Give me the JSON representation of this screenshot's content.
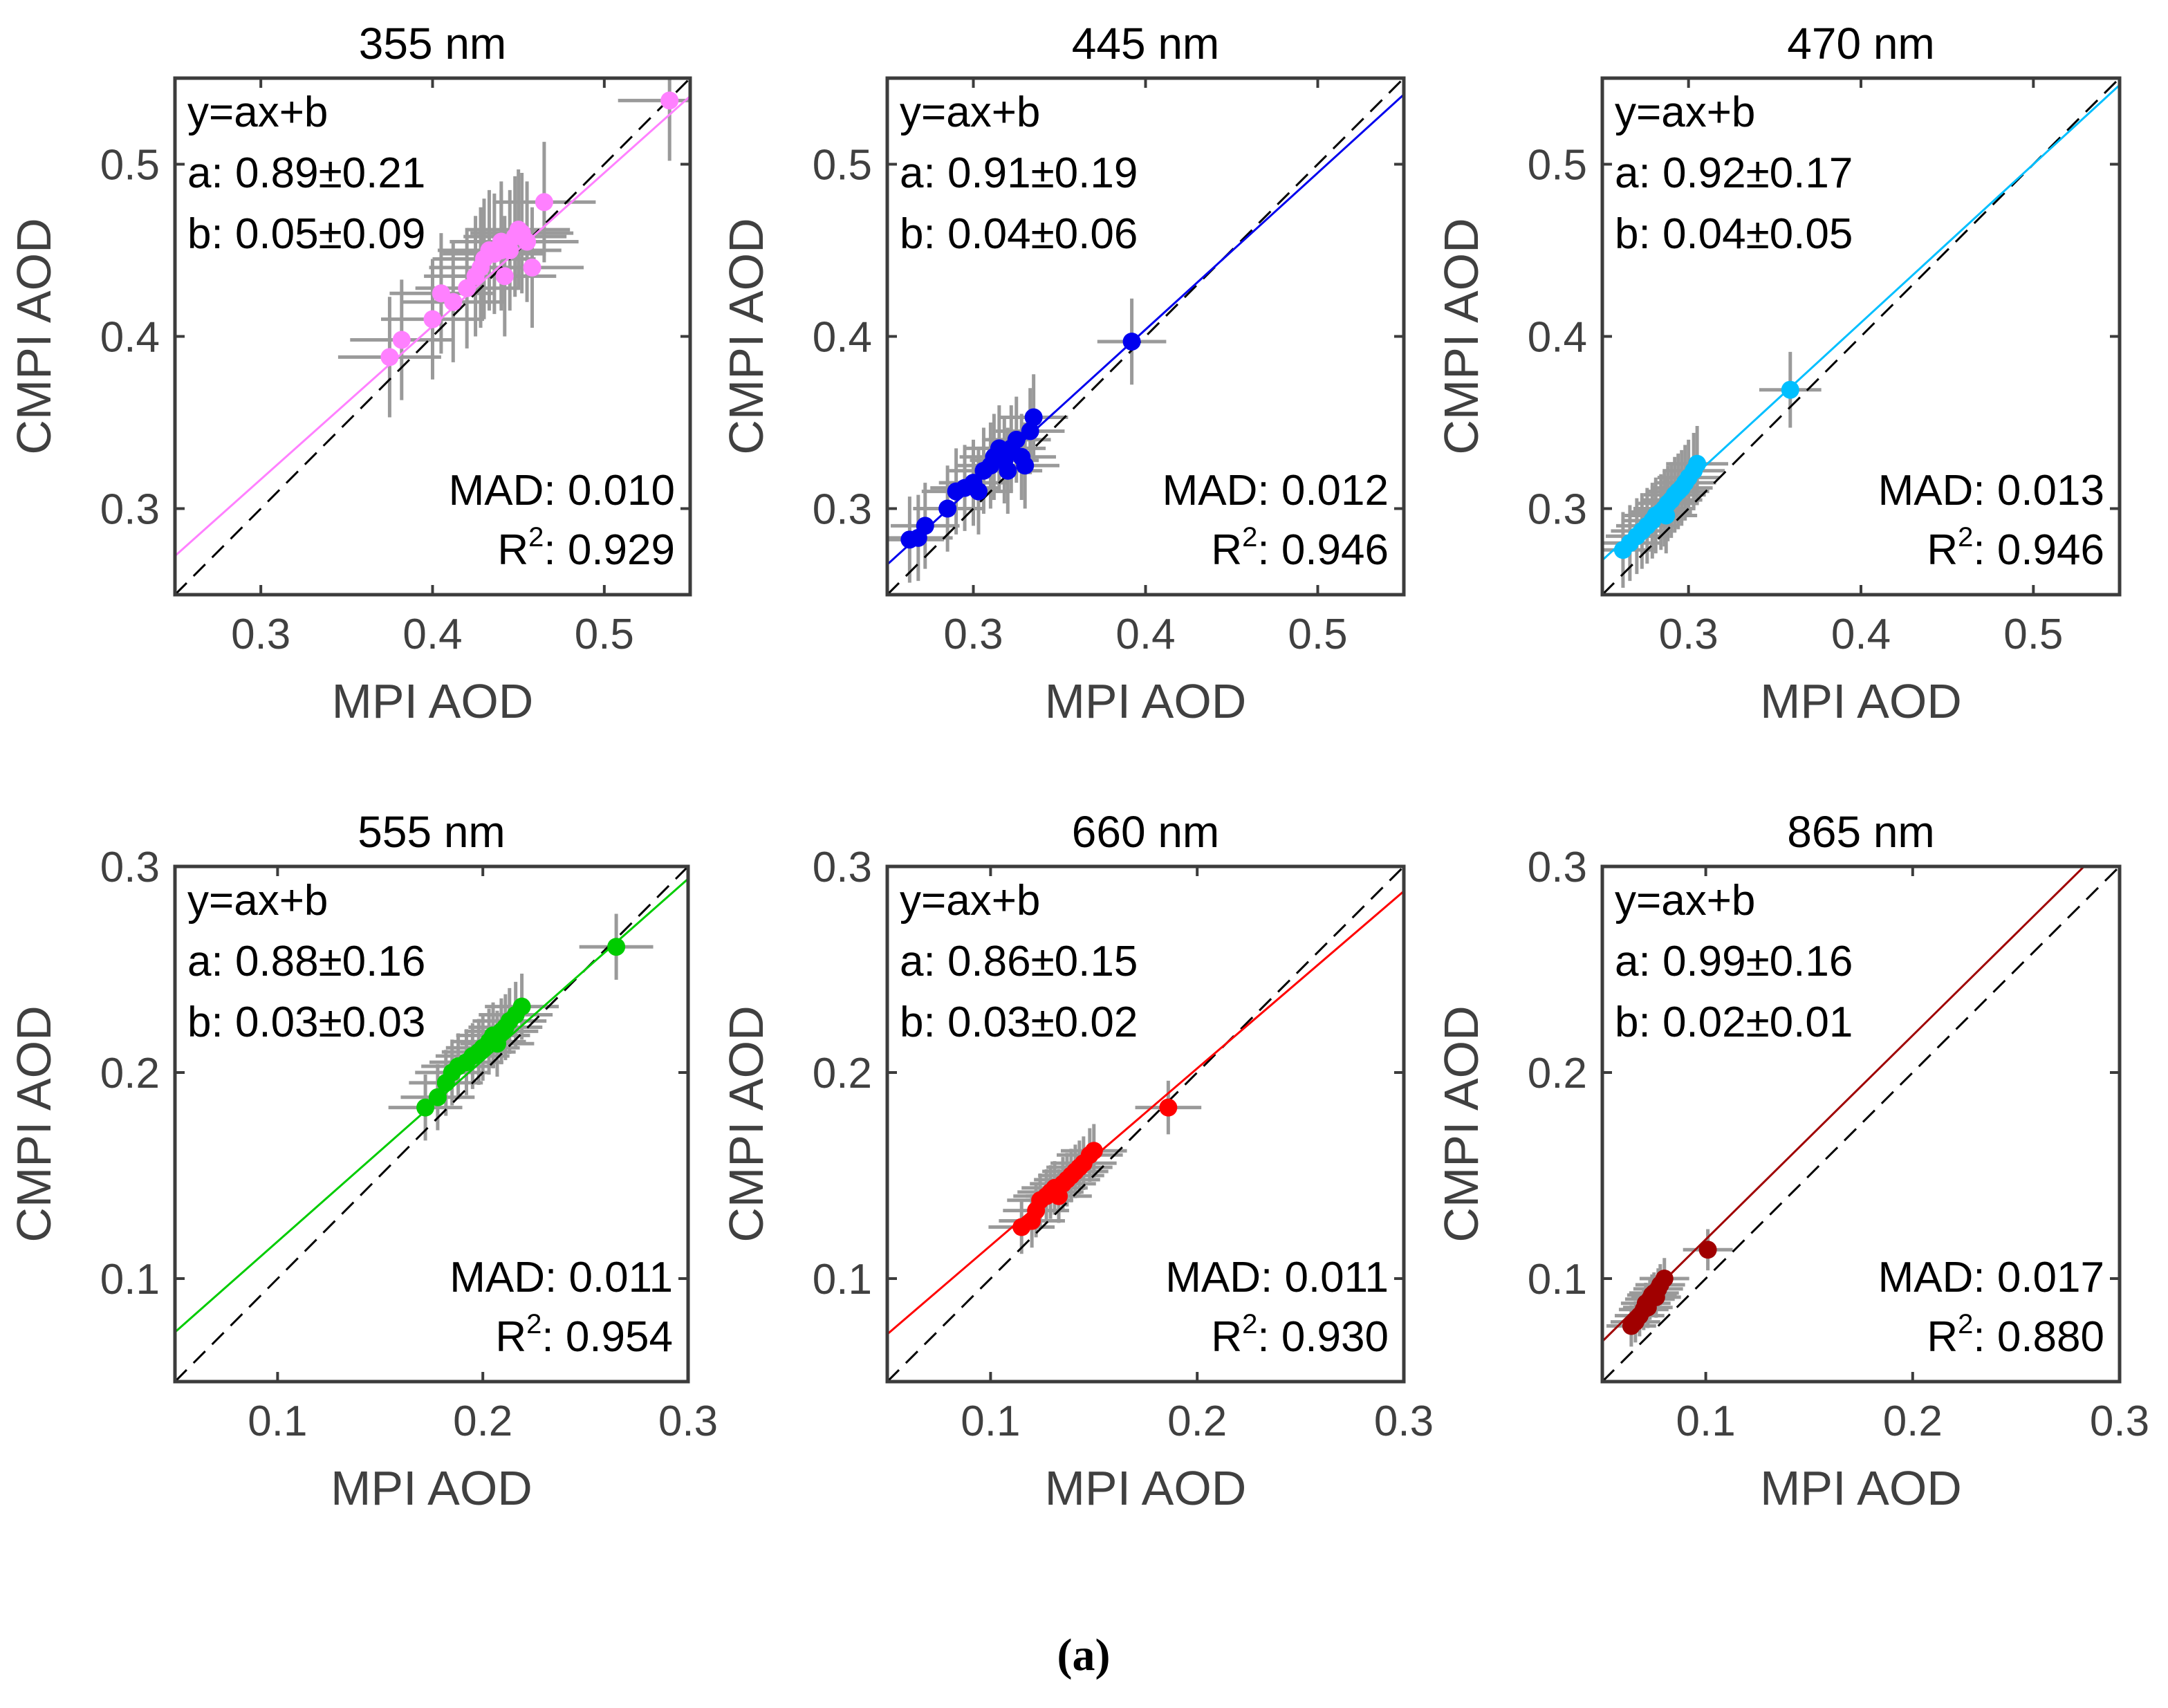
{
  "figure_label": "(a)",
  "colors": {
    "355 nm": "#ff80ff",
    "445 nm": "#0000ee",
    "470 nm": "#00bfff",
    "555 nm": "#00cc00",
    "660 nm": "#ff0000",
    "865 nm": "#a00000",
    "error_bars": "#9a9a9a",
    "frame": "#3c3c3c"
  },
  "chart_data": [
    {
      "type": "scatter",
      "title": "355 nm",
      "xlabel": "MPI AOD",
      "ylabel": "CMPI AOD",
      "xlim": [
        0.25,
        0.55
      ],
      "ylim": [
        0.25,
        0.55
      ],
      "xticks": [
        "0.3",
        "0.4",
        "0.5"
      ],
      "yticks": [
        "0.3",
        "0.4",
        "0.5"
      ],
      "equation": "y=ax+b",
      "a": "0.89±0.21",
      "b": "0.05±0.09",
      "a_label": "a:",
      "b_label": "b:",
      "mad_label": "MAD:",
      "mad": "0.010",
      "r2_label": "R",
      "r2_sup": "2",
      "r2_colon": ":",
      "r2": "0.929",
      "fit": {
        "slope": 0.89,
        "intercept": 0.05
      },
      "x_err": 0.03,
      "y_err": 0.035,
      "points": [
        [
          0.375,
          0.388
        ],
        [
          0.382,
          0.398
        ],
        [
          0.4,
          0.41
        ],
        [
          0.405,
          0.425
        ],
        [
          0.412,
          0.42
        ],
        [
          0.42,
          0.428
        ],
        [
          0.425,
          0.435
        ],
        [
          0.428,
          0.44
        ],
        [
          0.43,
          0.445
        ],
        [
          0.433,
          0.45
        ],
        [
          0.436,
          0.448
        ],
        [
          0.44,
          0.455
        ],
        [
          0.442,
          0.435
        ],
        [
          0.445,
          0.45
        ],
        [
          0.448,
          0.458
        ],
        [
          0.45,
          0.462
        ],
        [
          0.452,
          0.46
        ],
        [
          0.455,
          0.455
        ],
        [
          0.458,
          0.44
        ],
        [
          0.465,
          0.478
        ],
        [
          0.44,
          0.45
        ],
        [
          0.538,
          0.537
        ]
      ]
    },
    {
      "type": "scatter",
      "title": "445 nm",
      "xlabel": "MPI AOD",
      "ylabel": "CMPI AOD",
      "xlim": [
        0.25,
        0.55
      ],
      "ylim": [
        0.25,
        0.55
      ],
      "xticks": [
        "0.3",
        "0.4",
        "0.5"
      ],
      "yticks": [
        "0.3",
        "0.4",
        "0.5"
      ],
      "equation": "y=ax+b",
      "a": "0.91±0.19",
      "b": "0.04±0.06",
      "a_label": "a:",
      "b_label": "b:",
      "mad_label": "MAD:",
      "mad": "0.012",
      "r2_label": "R",
      "r2_sup": "2",
      "r2_colon": ":",
      "r2": "0.946",
      "fit": {
        "slope": 0.91,
        "intercept": 0.04
      },
      "x_err": 0.02,
      "y_err": 0.025,
      "points": [
        [
          0.263,
          0.282
        ],
        [
          0.268,
          0.283
        ],
        [
          0.272,
          0.29
        ],
        [
          0.285,
          0.3
        ],
        [
          0.29,
          0.31
        ],
        [
          0.295,
          0.312
        ],
        [
          0.3,
          0.315
        ],
        [
          0.303,
          0.31
        ],
        [
          0.306,
          0.322
        ],
        [
          0.31,
          0.325
        ],
        [
          0.312,
          0.33
        ],
        [
          0.315,
          0.335
        ],
        [
          0.318,
          0.328
        ],
        [
          0.32,
          0.322
        ],
        [
          0.322,
          0.335
        ],
        [
          0.325,
          0.34
        ],
        [
          0.328,
          0.33
        ],
        [
          0.33,
          0.325
        ],
        [
          0.333,
          0.345
        ],
        [
          0.335,
          0.353
        ],
        [
          0.392,
          0.397
        ]
      ]
    },
    {
      "type": "scatter",
      "title": "470 nm",
      "xlabel": "MPI AOD",
      "ylabel": "CMPI AOD",
      "xlim": [
        0.25,
        0.55
      ],
      "ylim": [
        0.25,
        0.55
      ],
      "xticks": [
        "0.3",
        "0.4",
        "0.5"
      ],
      "yticks": [
        "0.3",
        "0.4",
        "0.5"
      ],
      "equation": "y=ax+b",
      "a": "0.92±0.17",
      "b": "0.04±0.05",
      "a_label": "a:",
      "b_label": "b:",
      "mad_label": "MAD:",
      "mad": "0.013",
      "r2_label": "R",
      "r2_sup": "2",
      "r2_colon": ":",
      "r2": "0.946",
      "fit": {
        "slope": 0.92,
        "intercept": 0.04
      },
      "x_err": 0.018,
      "y_err": 0.022,
      "points": [
        [
          0.262,
          0.276
        ],
        [
          0.266,
          0.28
        ],
        [
          0.27,
          0.284
        ],
        [
          0.273,
          0.287
        ],
        [
          0.276,
          0.29
        ],
        [
          0.279,
          0.293
        ],
        [
          0.281,
          0.296
        ],
        [
          0.284,
          0.298
        ],
        [
          0.286,
          0.3
        ],
        [
          0.288,
          0.303
        ],
        [
          0.29,
          0.305
        ],
        [
          0.292,
          0.308
        ],
        [
          0.294,
          0.31
        ],
        [
          0.296,
          0.312
        ],
        [
          0.298,
          0.315
        ],
        [
          0.3,
          0.318
        ],
        [
          0.303,
          0.322
        ],
        [
          0.305,
          0.326
        ],
        [
          0.287,
          0.296
        ],
        [
          0.359,
          0.369
        ]
      ]
    },
    {
      "type": "scatter",
      "title": "555 nm",
      "xlabel": "MPI AOD",
      "ylabel": "CMPI AOD",
      "xlim": [
        0.05,
        0.3
      ],
      "ylim": [
        0.05,
        0.3
      ],
      "xticks": [
        "0.1",
        "0.2",
        "0.3"
      ],
      "yticks": [
        "0.1",
        "0.2",
        "0.3"
      ],
      "equation": "y=ax+b",
      "a": "0.88±0.16",
      "b": "0.03±0.03",
      "a_label": "a:",
      "b_label": "b:",
      "mad_label": "MAD:",
      "mad": "0.011",
      "r2_label": "R",
      "r2_sup": "2",
      "r2_colon": ":",
      "r2": "0.954",
      "fit": {
        "slope": 0.88,
        "intercept": 0.03
      },
      "x_err": 0.018,
      "y_err": 0.016,
      "points": [
        [
          0.172,
          0.183
        ],
        [
          0.178,
          0.188
        ],
        [
          0.182,
          0.195
        ],
        [
          0.185,
          0.2
        ],
        [
          0.188,
          0.203
        ],
        [
          0.192,
          0.205
        ],
        [
          0.195,
          0.208
        ],
        [
          0.198,
          0.21
        ],
        [
          0.2,
          0.212
        ],
        [
          0.203,
          0.215
        ],
        [
          0.205,
          0.218
        ],
        [
          0.207,
          0.214
        ],
        [
          0.209,
          0.22
        ],
        [
          0.211,
          0.222
        ],
        [
          0.213,
          0.225
        ],
        [
          0.216,
          0.228
        ],
        [
          0.219,
          0.232
        ],
        [
          0.265,
          0.261
        ]
      ]
    },
    {
      "type": "scatter",
      "title": "660 nm",
      "xlabel": "MPI AOD",
      "ylabel": "CMPI AOD",
      "xlim": [
        0.05,
        0.3
      ],
      "ylim": [
        0.05,
        0.3
      ],
      "xticks": [
        "0.1",
        "0.2",
        "0.3"
      ],
      "yticks": [
        "0.1",
        "0.2",
        "0.3"
      ],
      "equation": "y=ax+b",
      "a": "0.86±0.15",
      "b": "0.03±0.02",
      "a_label": "a:",
      "b_label": "b:",
      "mad_label": "MAD:",
      "mad": "0.011",
      "r2_label": "R",
      "r2_sup": "2",
      "r2_colon": ":",
      "r2": "0.930",
      "fit": {
        "slope": 0.86,
        "intercept": 0.03
      },
      "x_err": 0.016,
      "y_err": 0.013,
      "points": [
        [
          0.115,
          0.125
        ],
        [
          0.12,
          0.128
        ],
        [
          0.122,
          0.133
        ],
        [
          0.124,
          0.138
        ],
        [
          0.127,
          0.14
        ],
        [
          0.129,
          0.142
        ],
        [
          0.131,
          0.144
        ],
        [
          0.133,
          0.14
        ],
        [
          0.135,
          0.146
        ],
        [
          0.137,
          0.148
        ],
        [
          0.139,
          0.15
        ],
        [
          0.141,
          0.152
        ],
        [
          0.143,
          0.154
        ],
        [
          0.145,
          0.156
        ],
        [
          0.148,
          0.16
        ],
        [
          0.15,
          0.162
        ],
        [
          0.186,
          0.183
        ]
      ]
    },
    {
      "type": "scatter",
      "title": "865 nm",
      "xlabel": "MPI AOD",
      "ylabel": "CMPI AOD",
      "xlim": [
        0.05,
        0.3
      ],
      "ylim": [
        0.05,
        0.3
      ],
      "xticks": [
        "0.1",
        "0.2",
        "0.3"
      ],
      "yticks": [
        "0.1",
        "0.2",
        "0.3"
      ],
      "equation": "y=ax+b",
      "a": "0.99±0.16",
      "b": "0.02±0.01",
      "a_label": "a:",
      "b_label": "b:",
      "mad_label": "MAD:",
      "mad": "0.017",
      "r2_label": "R",
      "r2_sup": "2",
      "r2_colon": ":",
      "r2": "0.880",
      "fit": {
        "slope": 0.99,
        "intercept": 0.02
      },
      "x_err": 0.012,
      "y_err": 0.01,
      "points": [
        [
          0.064,
          0.077
        ],
        [
          0.066,
          0.079
        ],
        [
          0.068,
          0.082
        ],
        [
          0.07,
          0.085
        ],
        [
          0.071,
          0.088
        ],
        [
          0.072,
          0.086
        ],
        [
          0.073,
          0.09
        ],
        [
          0.074,
          0.092
        ],
        [
          0.075,
          0.093
        ],
        [
          0.076,
          0.091
        ],
        [
          0.077,
          0.095
        ],
        [
          0.078,
          0.097
        ],
        [
          0.08,
          0.1
        ],
        [
          0.101,
          0.114
        ]
      ]
    }
  ]
}
